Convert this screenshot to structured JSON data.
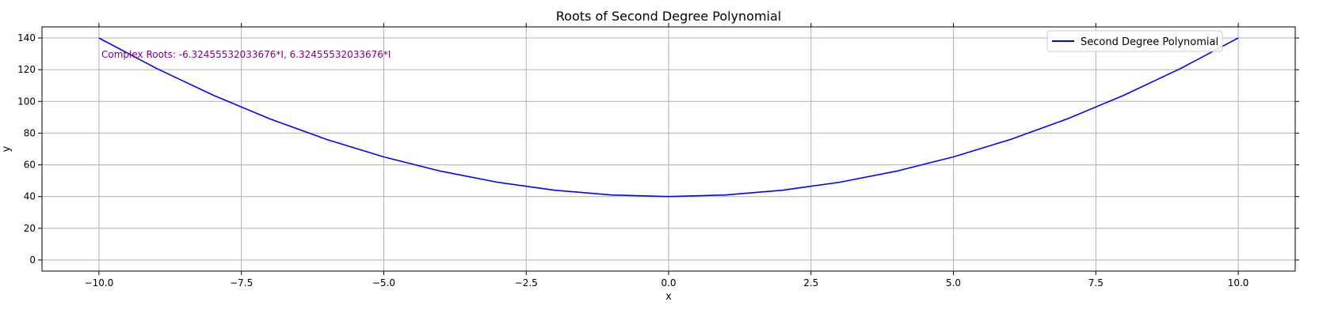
{
  "chart_data": {
    "type": "line",
    "title": "Roots of Second Degree Polynomial",
    "xlabel": "x",
    "ylabel": "y",
    "xlim": [
      -11,
      11
    ],
    "ylim": [
      -7,
      147
    ],
    "x_ticks": [
      -10.0,
      -7.5,
      -5.0,
      -2.5,
      0.0,
      2.5,
      5.0,
      7.5,
      10.0
    ],
    "x_tick_labels": [
      "−10.0",
      "−7.5",
      "−5.0",
      "−2.5",
      "0.0",
      "2.5",
      "5.0",
      "7.5",
      "10.0"
    ],
    "y_ticks": [
      0,
      20,
      40,
      60,
      80,
      100,
      120,
      140
    ],
    "y_tick_labels": [
      "0",
      "20",
      "40",
      "60",
      "80",
      "100",
      "120",
      "140"
    ],
    "grid": true,
    "legend_position": "top-right",
    "series": [
      {
        "name": "Second Degree Polynomial",
        "color": "#0000ff",
        "x": [
          -10,
          -9,
          -8,
          -7,
          -6,
          -5,
          -4,
          -3,
          -2,
          -1,
          0,
          1,
          2,
          3,
          4,
          5,
          6,
          7,
          8,
          9,
          10
        ],
        "y": [
          140,
          121,
          104,
          89,
          76,
          65,
          56,
          49,
          44,
          41,
          40,
          41,
          44,
          49,
          56,
          65,
          76,
          89,
          104,
          121,
          140
        ]
      }
    ],
    "annotation": {
      "text": "Complex Roots: -6.32455532033676*I, 6.32455532033676*I",
      "color": "#800080"
    }
  }
}
